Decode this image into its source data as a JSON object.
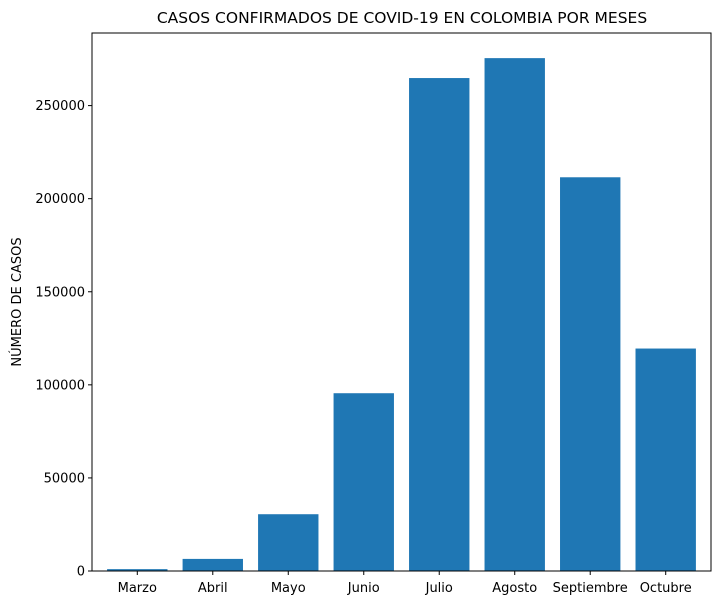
{
  "chart_data": {
    "type": "bar",
    "title": "CASOS CONFIRMADOS DE COVID-19 EN COLOMBIA POR MESES",
    "xlabel": "",
    "ylabel": "NÚMERO DE CASOS",
    "categories": [
      "Marzo",
      "Abril",
      "Mayo",
      "Junio",
      "Julio",
      "Agosto",
      "Septiembre",
      "Octubre"
    ],
    "values": [
      1000,
      6500,
      30500,
      95500,
      264800,
      275500,
      211500,
      119500
    ],
    "ylim": [
      0,
      289000
    ],
    "yticks": [
      0,
      50000,
      100000,
      150000,
      200000,
      250000
    ],
    "grid": false,
    "bar_color": "#1f77b4"
  }
}
